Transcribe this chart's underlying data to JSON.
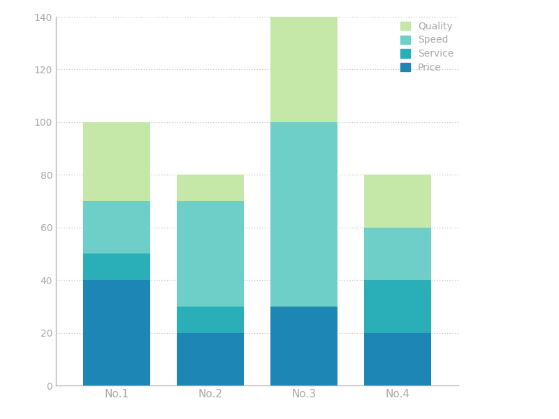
{
  "categories": [
    "No.1",
    "No.2",
    "No.3",
    "No.4"
  ],
  "series": {
    "Price": [
      40,
      20,
      30,
      20
    ],
    "Service": [
      10,
      10,
      0,
      20
    ],
    "Speed": [
      20,
      40,
      70,
      20
    ],
    "Quality": [
      30,
      10,
      40,
      20
    ]
  },
  "colors": {
    "Price": "#1e86b5",
    "Service": "#2aafb8",
    "Speed": "#6ecfc8",
    "Quality": "#c5e8a8"
  },
  "ylim": [
    0,
    140
  ],
  "yticks": [
    0,
    20,
    40,
    60,
    80,
    100,
    120,
    140
  ],
  "legend_order": [
    "Quality",
    "Speed",
    "Service",
    "Price"
  ],
  "background_color": "#ffffff",
  "grid_color": "#cccccc",
  "tick_color": "#aaaaaa",
  "bar_width": 0.72,
  "figsize": [
    8.0,
    6.0
  ],
  "dpi": 100
}
